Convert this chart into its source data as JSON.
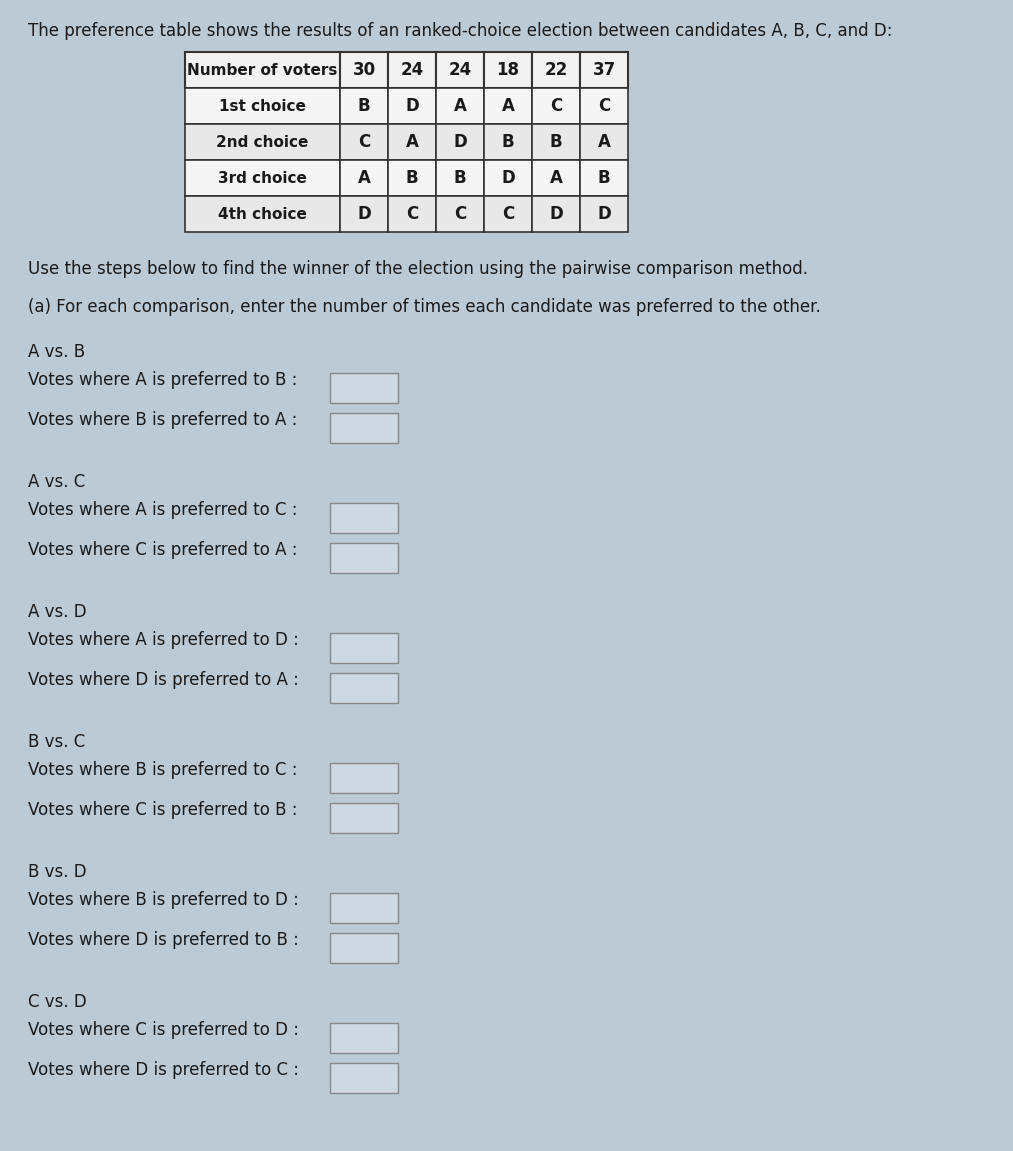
{
  "title_text": "The preference table shows the results of an ranked-choice election between candidates A, B, C, and D:",
  "table_header": [
    "Number of voters",
    "30",
    "24",
    "24",
    "18",
    "22",
    "37"
  ],
  "table_rows": [
    [
      "1st choice",
      "B",
      "D",
      "A",
      "A",
      "C",
      "C"
    ],
    [
      "2nd choice",
      "C",
      "A",
      "D",
      "B",
      "B",
      "A"
    ],
    [
      "3rd choice",
      "A",
      "B",
      "B",
      "D",
      "A",
      "B"
    ],
    [
      "4th choice",
      "D",
      "C",
      "C",
      "C",
      "D",
      "D"
    ]
  ],
  "instruction1": "Use the steps below to find the winner of the election using the pairwise comparison method.",
  "instruction2": "(a) For each comparison, enter the number of times each candidate was preferred to the other.",
  "comparisons": [
    {
      "header": "A vs. B",
      "line1": "Votes where A is preferred to B :",
      "line2": "Votes where B is preferred to A :"
    },
    {
      "header": "A vs. C",
      "line1": "Votes where A is preferred to C :",
      "line2": "Votes where C is preferred to A :"
    },
    {
      "header": "A vs. D",
      "line1": "Votes where A is preferred to D :",
      "line2": "Votes where D is preferred to A :"
    },
    {
      "header": "B vs. C",
      "line1": "Votes where B is preferred to C :",
      "line2": "Votes where C is preferred to B :"
    },
    {
      "header": "B vs. D",
      "line1": "Votes where B is preferred to D :",
      "line2": "Votes where D is preferred to B :"
    },
    {
      "header": "C vs. D",
      "line1": "Votes where C is preferred to D :",
      "line2": "Votes where D is preferred to C :"
    }
  ],
  "bg_color": "#bccad6",
  "text_color": "#1a1a1a",
  "title_fontsize": 12,
  "body_fontsize": 12,
  "table_fontsize": 12
}
